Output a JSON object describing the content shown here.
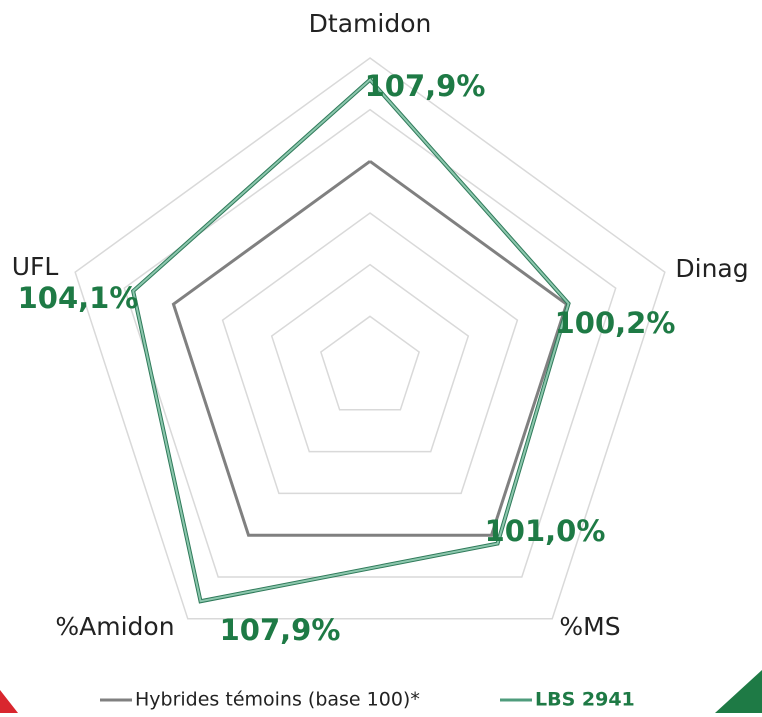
{
  "chart_data": {
    "type": "radar",
    "categories": [
      "Dtamidon",
      "Dinag",
      "%MS",
      "%Amidon",
      "UFL"
    ],
    "rlim": [
      80,
      110
    ],
    "rticks": [
      85,
      90,
      95,
      100,
      105,
      110
    ],
    "grid": true,
    "series": [
      {
        "name": "Hybrides témoins (base 100)*",
        "color": "#808080",
        "values": [
          100,
          100,
          100,
          100,
          100
        ]
      },
      {
        "name": "LBS 2941",
        "color": "#4f9c7c",
        "label_color": "#1e7a45",
        "values": [
          107.9,
          100.2,
          101.0,
          107.9,
          104.1
        ],
        "value_labels": [
          "107,9%",
          "100,2%",
          "101,0%",
          "107,9%",
          "104,1%"
        ]
      }
    ]
  }
}
